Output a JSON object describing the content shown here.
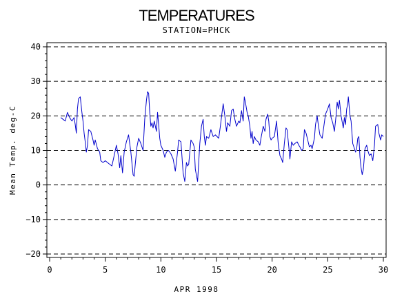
{
  "chart_data": {
    "type": "line",
    "title": "TEMPERATURES",
    "subtitle": "STATION=PHCK",
    "xlabel": "APR 1998",
    "ylabel": "Mean Temp. deg-C",
    "xlim": [
      0,
      30
    ],
    "ylim": [
      -20,
      40
    ],
    "x_ticks": [
      0,
      5,
      10,
      15,
      20,
      25,
      30
    ],
    "y_ticks": [
      -20,
      -10,
      0,
      10,
      20,
      30,
      40
    ],
    "grid": "horizontal dashed at major y ticks",
    "line_color": "#0000cc",
    "series": [
      {
        "points": [
          [
            1.0,
            19.5
          ],
          [
            1.2,
            19.0
          ],
          [
            1.4,
            18.5
          ],
          [
            1.6,
            21.0
          ],
          [
            1.8,
            19.5
          ],
          [
            2.0,
            18.5
          ],
          [
            2.2,
            19.5
          ],
          [
            2.3,
            17.5
          ],
          [
            2.4,
            15.0
          ],
          [
            2.5,
            22.0
          ],
          [
            2.6,
            25.0
          ],
          [
            2.75,
            25.5
          ],
          [
            2.9,
            21.0
          ],
          [
            3.0,
            18.5
          ],
          [
            3.1,
            15.0
          ],
          [
            3.2,
            12.5
          ],
          [
            3.3,
            9.5
          ],
          [
            3.4,
            11.5
          ],
          [
            3.5,
            16.0
          ],
          [
            3.7,
            15.5
          ],
          [
            3.9,
            13.0
          ],
          [
            4.0,
            11.5
          ],
          [
            4.1,
            13.0
          ],
          [
            4.3,
            10.5
          ],
          [
            4.5,
            9.5
          ],
          [
            4.6,
            7.0
          ],
          [
            4.8,
            6.5
          ],
          [
            5.0,
            7.0
          ],
          [
            5.2,
            6.5
          ],
          [
            5.4,
            6.0
          ],
          [
            5.6,
            5.5
          ],
          [
            5.8,
            8.5
          ],
          [
            6.0,
            11.5
          ],
          [
            6.15,
            9.0
          ],
          [
            6.3,
            5.0
          ],
          [
            6.4,
            8.5
          ],
          [
            6.55,
            3.5
          ],
          [
            6.7,
            9.5
          ],
          [
            6.9,
            12.5
          ],
          [
            7.1,
            14.5
          ],
          [
            7.3,
            9.5
          ],
          [
            7.5,
            3.0
          ],
          [
            7.6,
            2.5
          ],
          [
            7.7,
            6.0
          ],
          [
            7.85,
            11.0
          ],
          [
            8.0,
            13.5
          ],
          [
            8.2,
            12.0
          ],
          [
            8.4,
            10.0
          ],
          [
            8.55,
            19.0
          ],
          [
            8.7,
            24.5
          ],
          [
            8.8,
            27.0
          ],
          [
            8.9,
            26.5
          ],
          [
            9.0,
            21.0
          ],
          [
            9.1,
            17.0
          ],
          [
            9.2,
            18.0
          ],
          [
            9.3,
            16.5
          ],
          [
            9.4,
            18.5
          ],
          [
            9.5,
            17.0
          ],
          [
            9.6,
            15.5
          ],
          [
            9.7,
            21.0
          ],
          [
            9.8,
            17.5
          ],
          [
            9.9,
            13.5
          ],
          [
            10.0,
            11.5
          ],
          [
            10.2,
            10.0
          ],
          [
            10.35,
            8.0
          ],
          [
            10.5,
            9.5
          ],
          [
            10.7,
            10.0
          ],
          [
            10.9,
            9.0
          ],
          [
            11.1,
            7.5
          ],
          [
            11.3,
            4.0
          ],
          [
            11.5,
            9.5
          ],
          [
            11.6,
            13.0
          ],
          [
            11.8,
            12.5
          ],
          [
            11.9,
            8.0
          ],
          [
            12.0,
            3.5
          ],
          [
            12.15,
            1.0
          ],
          [
            12.3,
            6.5
          ],
          [
            12.4,
            5.5
          ],
          [
            12.5,
            6.0
          ],
          [
            12.7,
            13.0
          ],
          [
            12.9,
            12.0
          ],
          [
            13.0,
            11.0
          ],
          [
            13.1,
            4.5
          ],
          [
            13.3,
            1.0
          ],
          [
            13.5,
            12.0
          ],
          [
            13.65,
            17.0
          ],
          [
            13.8,
            19.0
          ],
          [
            13.9,
            14.0
          ],
          [
            14.0,
            11.5
          ],
          [
            14.1,
            14.0
          ],
          [
            14.3,
            13.5
          ],
          [
            14.5,
            16.0
          ],
          [
            14.7,
            14.0
          ],
          [
            14.9,
            14.5
          ],
          [
            15.2,
            13.5
          ],
          [
            15.35,
            17.0
          ],
          [
            15.5,
            21.0
          ],
          [
            15.6,
            23.5
          ],
          [
            15.75,
            20.0
          ],
          [
            15.9,
            15.5
          ],
          [
            16.0,
            18.0
          ],
          [
            16.2,
            17.0
          ],
          [
            16.35,
            21.5
          ],
          [
            16.5,
            22.0
          ],
          [
            16.65,
            19.0
          ],
          [
            16.8,
            17.0
          ],
          [
            17.0,
            18.5
          ],
          [
            17.1,
            18.0
          ],
          [
            17.25,
            21.5
          ],
          [
            17.4,
            18.5
          ],
          [
            17.5,
            25.5
          ],
          [
            17.6,
            24.0
          ],
          [
            17.75,
            21.0
          ],
          [
            17.85,
            20.0
          ],
          [
            18.0,
            17.0
          ],
          [
            18.1,
            13.5
          ],
          [
            18.2,
            15.5
          ],
          [
            18.3,
            12.0
          ],
          [
            18.4,
            14.0
          ],
          [
            18.55,
            13.0
          ],
          [
            18.75,
            12.5
          ],
          [
            18.9,
            11.5
          ],
          [
            19.0,
            13.5
          ],
          [
            19.2,
            17.0
          ],
          [
            19.35,
            15.5
          ],
          [
            19.45,
            19.0
          ],
          [
            19.6,
            20.5
          ],
          [
            19.7,
            18.5
          ],
          [
            19.8,
            14.0
          ],
          [
            19.9,
            13.0
          ],
          [
            20.0,
            13.5
          ],
          [
            20.2,
            14.0
          ],
          [
            20.4,
            18.5
          ],
          [
            20.55,
            12.0
          ],
          [
            20.7,
            8.5
          ],
          [
            20.85,
            7.5
          ],
          [
            20.95,
            6.5
          ],
          [
            21.1,
            12.0
          ],
          [
            21.25,
            16.5
          ],
          [
            21.35,
            16.0
          ],
          [
            21.5,
            11.0
          ],
          [
            21.6,
            7.5
          ],
          [
            21.75,
            12.5
          ],
          [
            21.9,
            11.5
          ],
          [
            22.05,
            12.0
          ],
          [
            22.25,
            12.5
          ],
          [
            22.4,
            11.5
          ],
          [
            22.5,
            11.0
          ],
          [
            22.65,
            10.0
          ],
          [
            22.8,
            10.5
          ],
          [
            22.9,
            16.0
          ],
          [
            23.05,
            15.0
          ],
          [
            23.2,
            13.0
          ],
          [
            23.35,
            11.0
          ],
          [
            23.5,
            11.5
          ],
          [
            23.6,
            10.5
          ],
          [
            23.8,
            13.5
          ],
          [
            23.9,
            17.5
          ],
          [
            24.05,
            20.0
          ],
          [
            24.15,
            17.5
          ],
          [
            24.3,
            14.5
          ],
          [
            24.5,
            13.5
          ],
          [
            24.65,
            17.0
          ],
          [
            24.8,
            20.5
          ],
          [
            25.0,
            22.0
          ],
          [
            25.15,
            23.5
          ],
          [
            25.3,
            19.5
          ],
          [
            25.45,
            18.0
          ],
          [
            25.6,
            15.5
          ],
          [
            25.75,
            20.0
          ],
          [
            25.85,
            24.0
          ],
          [
            25.95,
            22.0
          ],
          [
            26.05,
            24.5
          ],
          [
            26.2,
            20.0
          ],
          [
            26.4,
            16.5
          ],
          [
            26.5,
            19.5
          ],
          [
            26.6,
            17.5
          ],
          [
            26.7,
            22.0
          ],
          [
            26.8,
            23.5
          ],
          [
            26.85,
            25.5
          ],
          [
            27.0,
            20.0
          ],
          [
            27.1,
            18.5
          ],
          [
            27.25,
            12.0
          ],
          [
            27.4,
            10.5
          ],
          [
            27.5,
            9.5
          ],
          [
            27.6,
            10.5
          ],
          [
            27.7,
            13.5
          ],
          [
            27.8,
            14.0
          ],
          [
            27.9,
            8.0
          ],
          [
            28.0,
            5.0
          ],
          [
            28.1,
            3.0
          ],
          [
            28.2,
            4.5
          ],
          [
            28.35,
            10.5
          ],
          [
            28.5,
            11.5
          ],
          [
            28.6,
            10.0
          ],
          [
            28.75,
            8.5
          ],
          [
            28.9,
            9.0
          ],
          [
            29.05,
            7.0
          ],
          [
            29.2,
            11.5
          ],
          [
            29.3,
            17.0
          ],
          [
            29.5,
            17.5
          ],
          [
            29.6,
            15.0
          ],
          [
            29.75,
            13.0
          ],
          [
            29.85,
            14.5
          ],
          [
            30.0,
            14.0
          ]
        ]
      }
    ]
  }
}
